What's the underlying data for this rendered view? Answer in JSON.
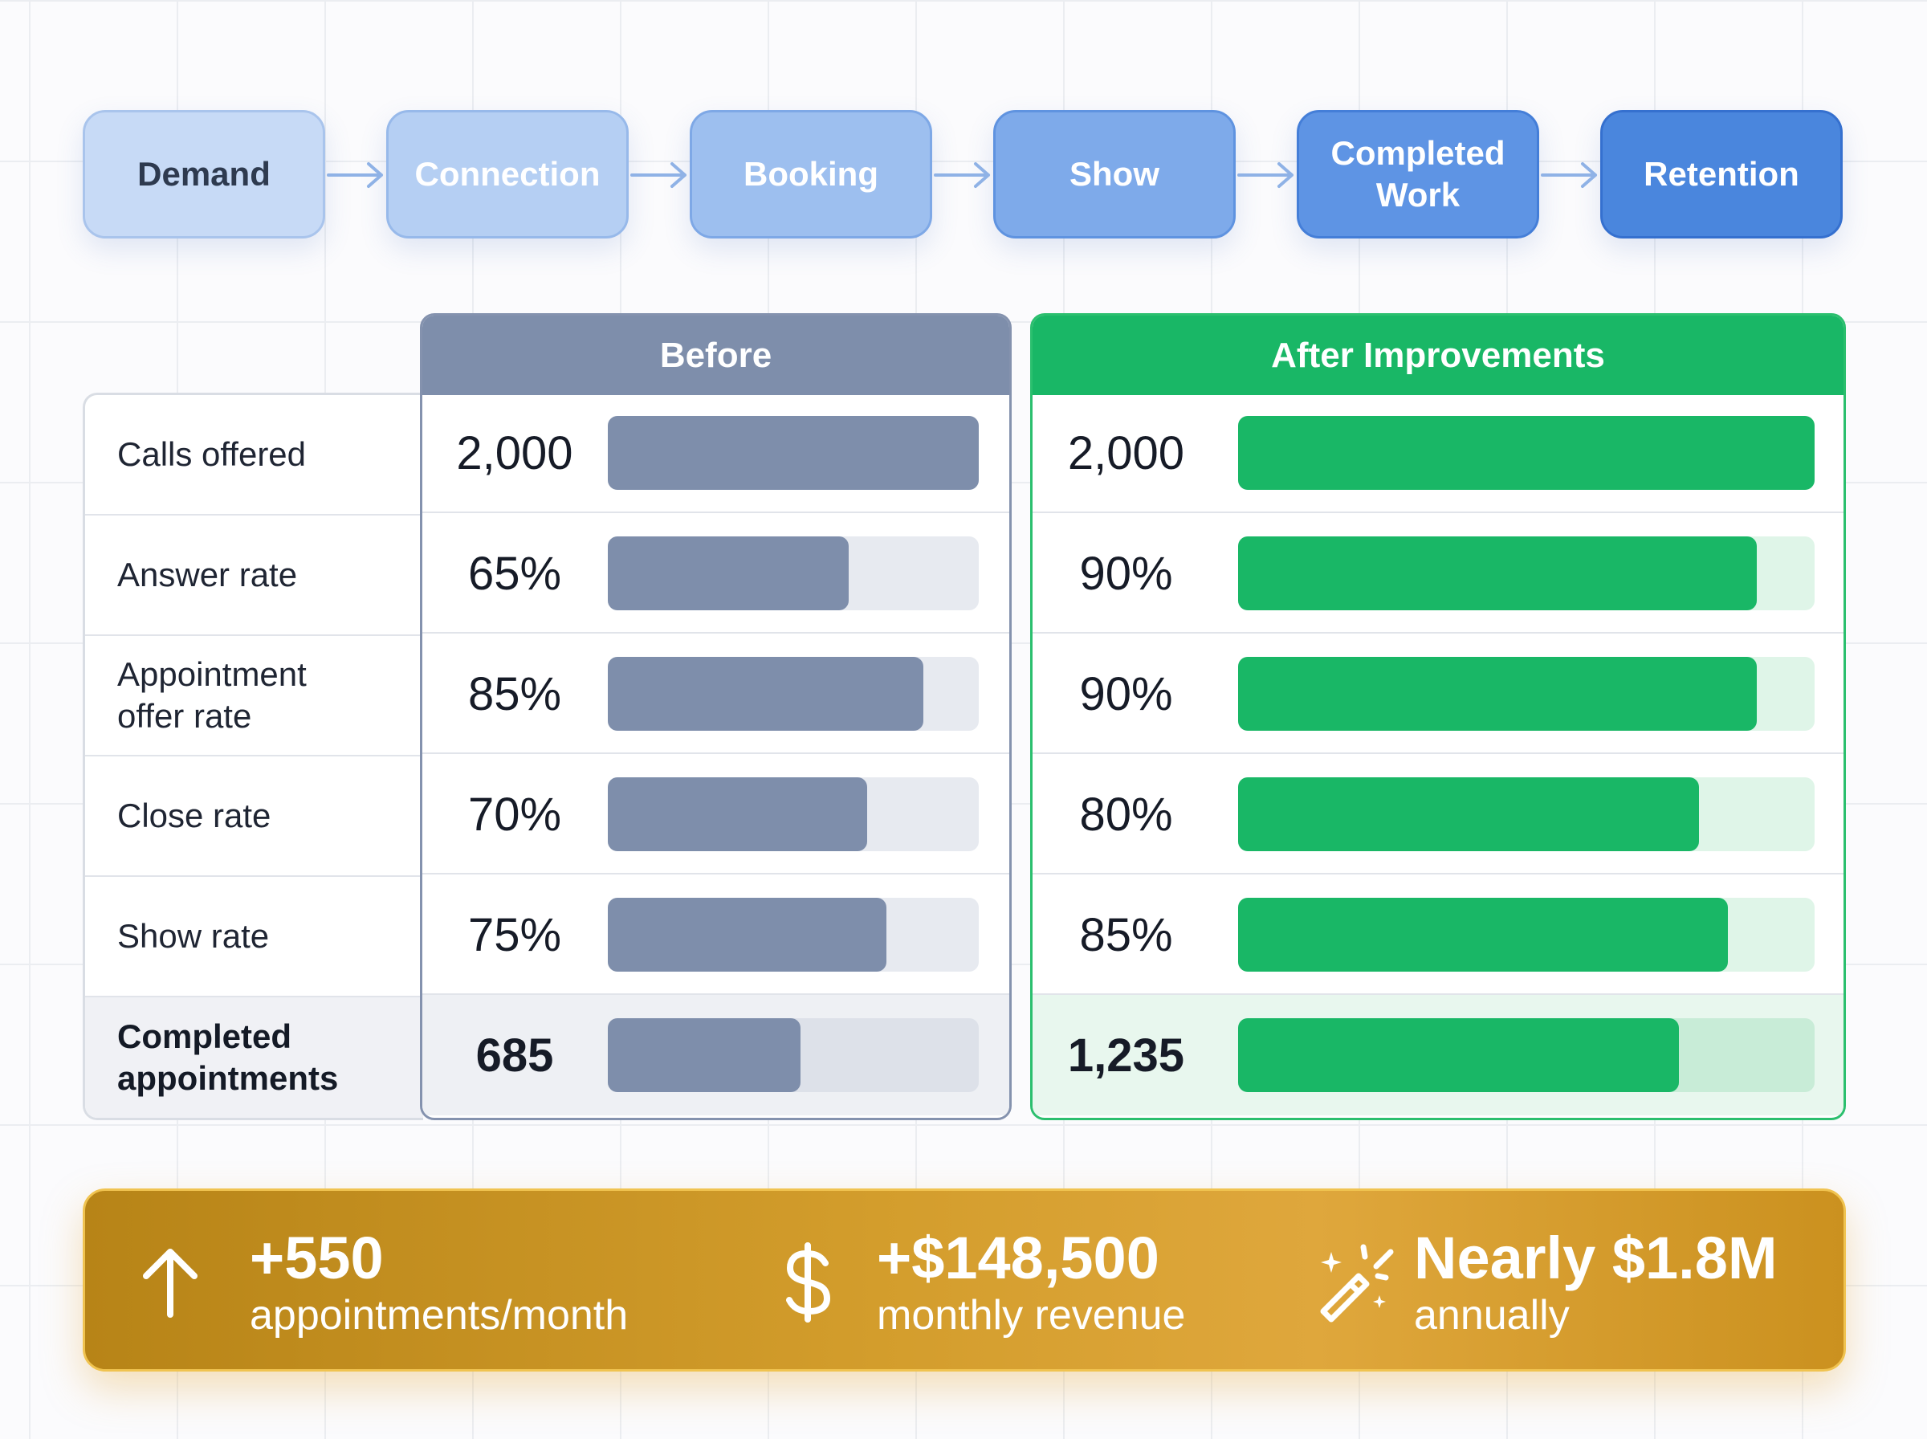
{
  "flow": {
    "steps": [
      {
        "label": "Demand",
        "bg": "#c7daf6",
        "border": "#a9c4ec",
        "text": "#2e3a4f"
      },
      {
        "label": "Connection",
        "bg": "#b5cff3",
        "border": "#97b9ea",
        "text": "#ffffff"
      },
      {
        "label": "Booking",
        "bg": "#9dbfef",
        "border": "#7ea8e6",
        "text": "#ffffff"
      },
      {
        "label": "Show",
        "bg": "#7eaaea",
        "border": "#5f93e0",
        "text": "#ffffff"
      },
      {
        "label": "Completed Work",
        "bg": "#5e94e4",
        "border": "#447ed8",
        "text": "#ffffff"
      },
      {
        "label": "Retention",
        "bg": "#4a86dd",
        "border": "#3570cf",
        "text": "#ffffff"
      }
    ],
    "arrow_color": "#8fb2e6"
  },
  "table": {
    "rows": [
      {
        "label": "Calls offered"
      },
      {
        "label": "Answer rate"
      },
      {
        "label": "Appointment offer rate"
      },
      {
        "label": "Close rate"
      },
      {
        "label": "Show rate"
      },
      {
        "label": "Completed appointments"
      }
    ]
  },
  "chart_data": {
    "type": "table",
    "series": [
      {
        "name": "Before",
        "color": "#7e8eab",
        "values": [
          "2,000",
          "65%",
          "85%",
          "70%",
          "75%",
          "685"
        ],
        "fractions": [
          1.0,
          0.65,
          0.85,
          0.7,
          0.75,
          0.52
        ]
      },
      {
        "name": "After Improvements",
        "color": "#19b766",
        "values": [
          "2,000",
          "90%",
          "90%",
          "80%",
          "85%",
          "1,235"
        ],
        "fractions": [
          1.0,
          0.9,
          0.9,
          0.8,
          0.85,
          0.765
        ]
      }
    ]
  },
  "summary": {
    "items": [
      {
        "icon": "arrow-up-icon",
        "value": "+550",
        "label": "appointments/month"
      },
      {
        "icon": "dollar-sign-icon",
        "value": "+$148,500",
        "label": "monthly revenue"
      },
      {
        "icon": "magic-wand-icon",
        "value": "Nearly $1.8M",
        "label": "annually"
      }
    ]
  }
}
